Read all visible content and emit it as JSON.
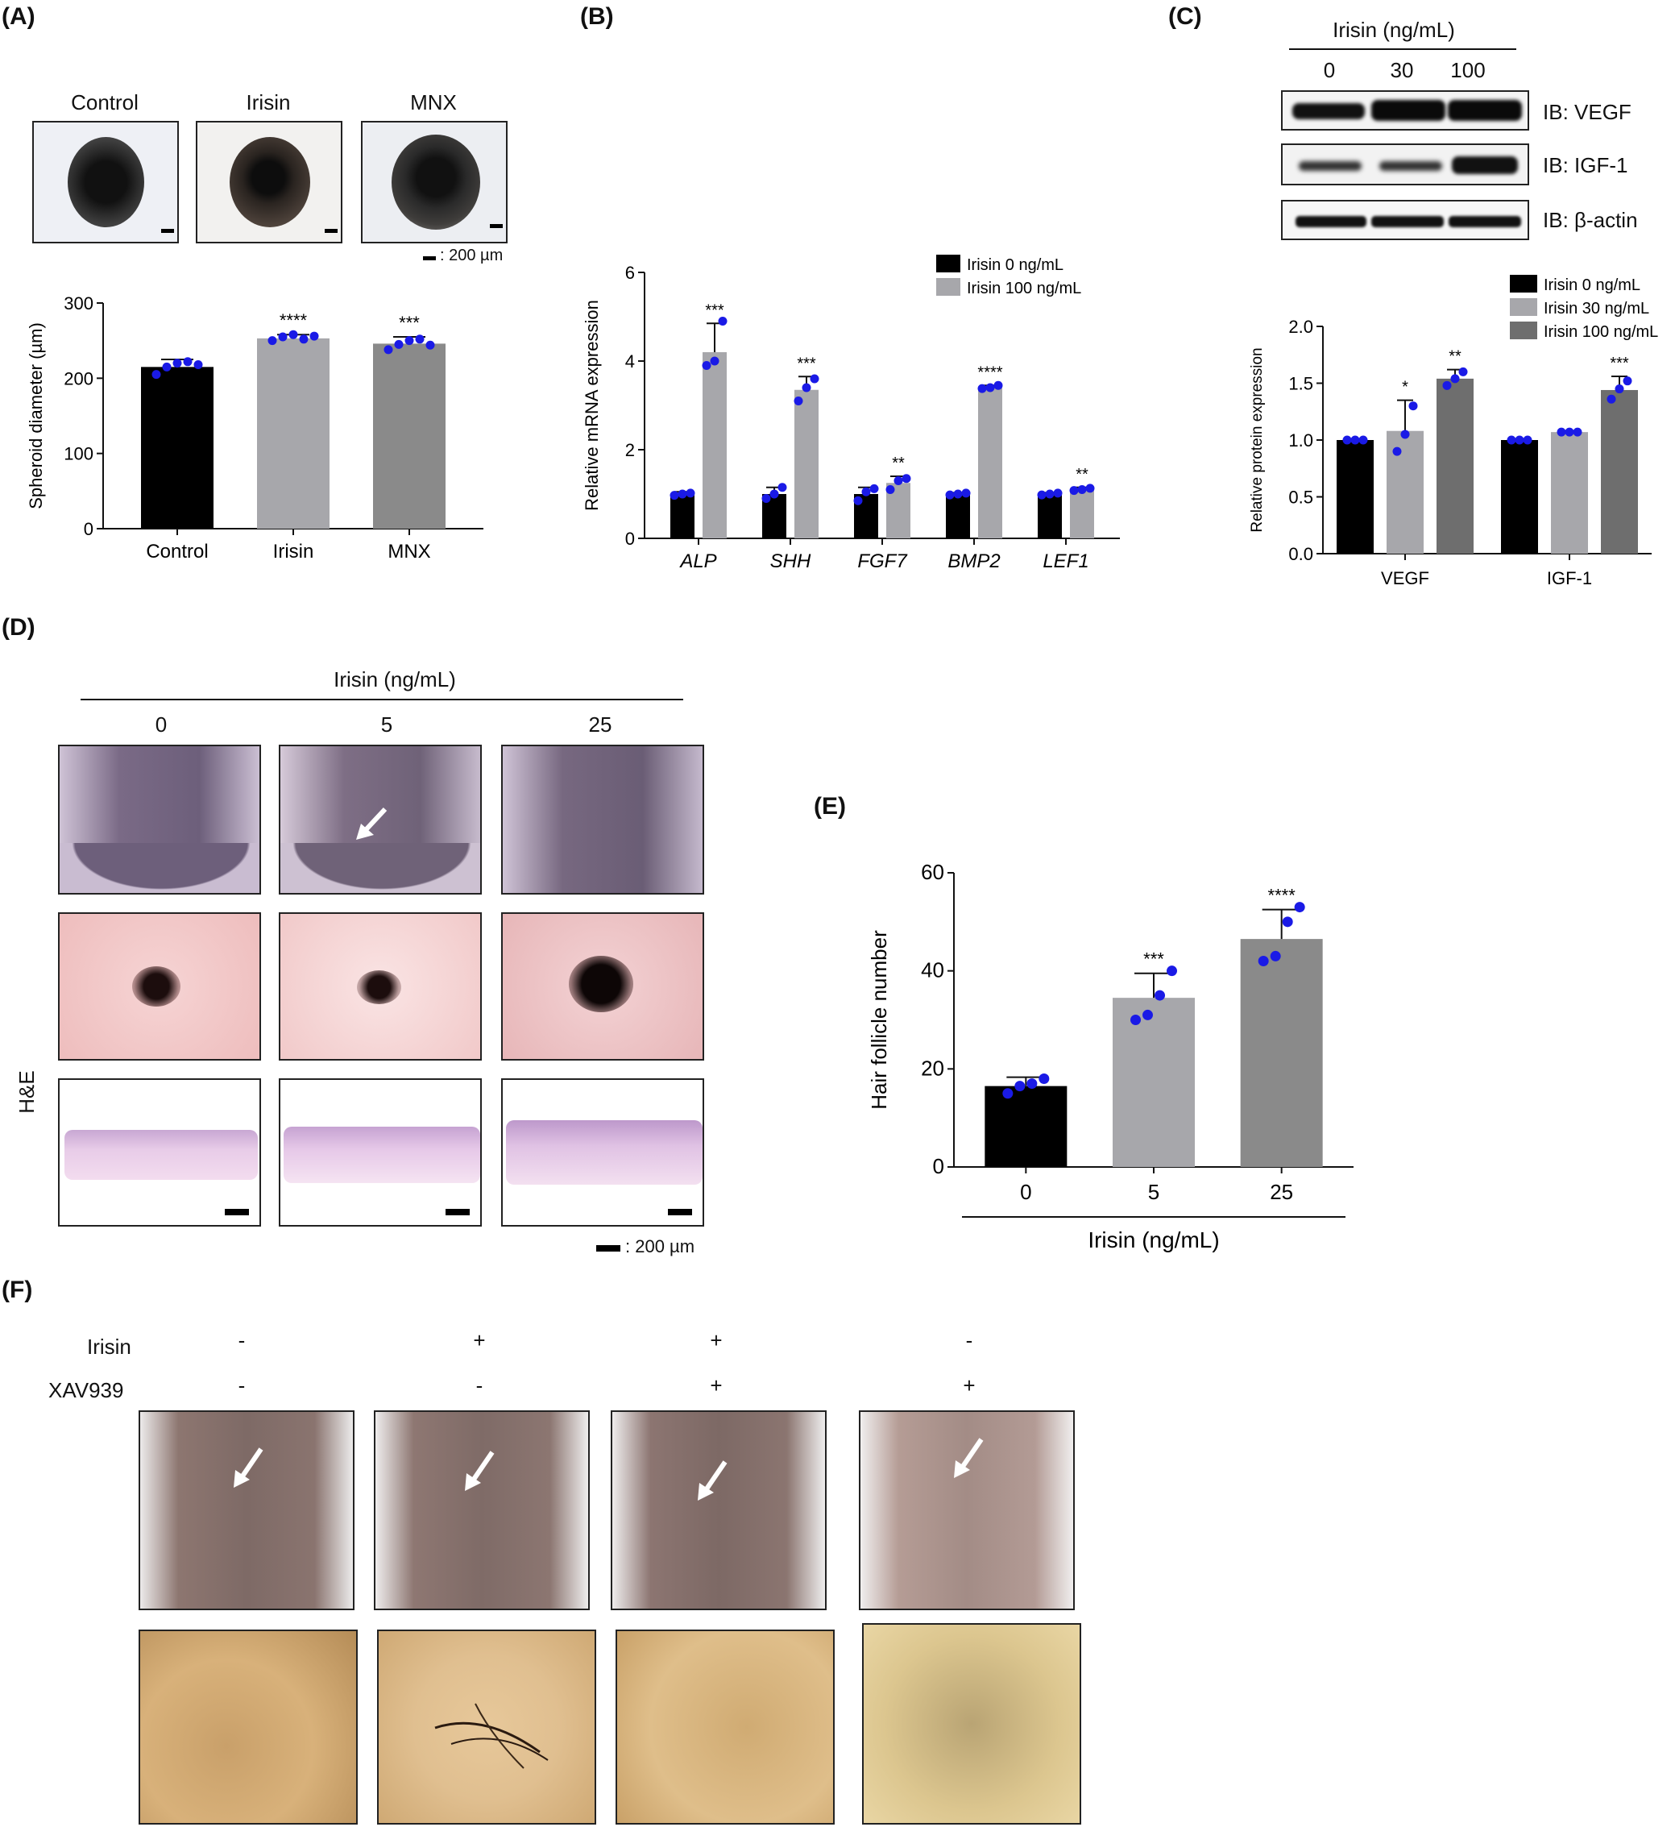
{
  "panels": {
    "A": "(A)",
    "B": "(B)",
    "C": "(C)",
    "D": "(D)",
    "E": "(E)",
    "F": "(F)"
  },
  "colors": {
    "black": "#000000",
    "lightgray": "#a7a7ab",
    "gray": "#8a8a8a",
    "darkgray": "#6e6e6e",
    "dot": "#1a1ae6"
  },
  "panelA": {
    "image_labels": [
      "Control",
      "Irisin",
      "MNX"
    ],
    "scalebar": ": 200 µm"
  },
  "panelC": {
    "header": "Irisin (ng/mL)",
    "lanes": [
      "0",
      "30",
      "100"
    ],
    "blots": [
      "IB: VEGF",
      "IB: IGF-1",
      "IB: β-actin"
    ]
  },
  "panelD": {
    "header": "Irisin (ng/mL)",
    "columns": [
      "0",
      "5",
      "25"
    ],
    "row_label": "H&E",
    "scalebar": ": 200 µm"
  },
  "panelF": {
    "rows": [
      {
        "label": "Irisin",
        "signs": [
          "-",
          "+",
          "+",
          "-"
        ]
      },
      {
        "label": "XAV939",
        "signs": [
          "-",
          "-",
          "+",
          "+"
        ]
      }
    ]
  },
  "chart_data": [
    {
      "id": "A",
      "type": "bar",
      "categories": [
        "Control",
        "Irisin",
        "MNX"
      ],
      "values": [
        215,
        253,
        246
      ],
      "errors": [
        10,
        5,
        9
      ],
      "points": [
        [
          205,
          215,
          220,
          222,
          218
        ],
        [
          250,
          255,
          258,
          252,
          256
        ],
        [
          238,
          245,
          250,
          252,
          244
        ]
      ],
      "significance": [
        "",
        "****",
        "***"
      ],
      "ylabel": "Spheroid diameter (µm)",
      "yticks": [
        0,
        100,
        200,
        300
      ],
      "ylim": [
        0,
        300
      ],
      "bar_colors": [
        "#000000",
        "#a7a7ab",
        "#8a8a8a"
      ]
    },
    {
      "id": "B",
      "type": "bar",
      "categories": [
        "ALP",
        "SHH",
        "FGF7",
        "BMP2",
        "LEF1"
      ],
      "series": [
        {
          "name": "Irisin 0 ng/mL",
          "color": "#000000",
          "values": [
            1.0,
            1.0,
            1.0,
            1.0,
            1.0
          ],
          "errors": [
            0.05,
            0.15,
            0.15,
            0.03,
            0.03
          ],
          "points": [
            [
              0.97,
              1.0,
              1.02
            ],
            [
              0.9,
              1.0,
              1.15
            ],
            [
              0.85,
              1.05,
              1.12
            ],
            [
              0.98,
              1.0,
              1.02
            ],
            [
              0.98,
              1.0,
              1.02
            ]
          ],
          "significance": [
            "",
            "",
            "",
            "",
            ""
          ]
        },
        {
          "name": "Irisin 100 ng/mL",
          "color": "#a7a7ab",
          "values": [
            4.2,
            3.35,
            1.25,
            3.4,
            1.1
          ],
          "errors": [
            0.65,
            0.3,
            0.15,
            0.05,
            0.05
          ],
          "points": [
            [
              3.9,
              4.0,
              4.9
            ],
            [
              3.1,
              3.4,
              3.6
            ],
            [
              1.1,
              1.3,
              1.35
            ],
            [
              3.38,
              3.4,
              3.45
            ],
            [
              1.08,
              1.1,
              1.13
            ]
          ],
          "significance": [
            "***",
            "***",
            "**",
            "****",
            "**"
          ]
        }
      ],
      "ylabel": "Relative mRNA expression",
      "yticks": [
        0,
        2,
        4,
        6
      ],
      "ylim": [
        0,
        6
      ]
    },
    {
      "id": "C",
      "type": "bar",
      "categories": [
        "VEGF",
        "IGF-1"
      ],
      "series": [
        {
          "name": "Irisin 0 ng/mL",
          "color": "#000000",
          "values": [
            1.0,
            1.0
          ],
          "errors": [
            0.01,
            0.01
          ],
          "points": [
            [
              1.0,
              1.0,
              1.0
            ],
            [
              1.0,
              1.0,
              1.0
            ]
          ],
          "significance": [
            "",
            ""
          ]
        },
        {
          "name": "Irisin 30 ng/mL",
          "color": "#a7a7ab",
          "values": [
            1.08,
            1.07
          ],
          "errors": [
            0.27,
            0.01
          ],
          "points": [
            [
              0.9,
              1.05,
              1.3
            ],
            [
              1.07,
              1.07,
              1.07
            ]
          ],
          "significance": [
            "*",
            ""
          ]
        },
        {
          "name": "Irisin 100 ng/mL",
          "color": "#6e6e6e",
          "values": [
            1.54,
            1.44
          ],
          "errors": [
            0.08,
            0.12
          ],
          "points": [
            [
              1.48,
              1.54,
              1.6
            ],
            [
              1.36,
              1.45,
              1.52
            ]
          ],
          "significance": [
            "**",
            "***"
          ]
        }
      ],
      "ylabel": "Relative protein expression",
      "yticks": [
        0.0,
        0.5,
        1.0,
        1.5,
        2.0
      ],
      "ylim": [
        0,
        2.0
      ]
    },
    {
      "id": "E",
      "type": "bar",
      "categories": [
        "0",
        "5",
        "25"
      ],
      "values": [
        16.5,
        34.5,
        46.5
      ],
      "errors": [
        1.8,
        5,
        6
      ],
      "points": [
        [
          15,
          16.5,
          17,
          18
        ],
        [
          30,
          31,
          35,
          40
        ],
        [
          42,
          43,
          50,
          53
        ]
      ],
      "significance": [
        "",
        "***",
        "****"
      ],
      "xlabel": "Irisin (ng/mL)",
      "ylabel": "Hair follicle number",
      "yticks": [
        0,
        20,
        40,
        60
      ],
      "ylim": [
        0,
        60
      ],
      "bar_colors": [
        "#000000",
        "#a7a7ab",
        "#8a8a8a"
      ]
    }
  ]
}
